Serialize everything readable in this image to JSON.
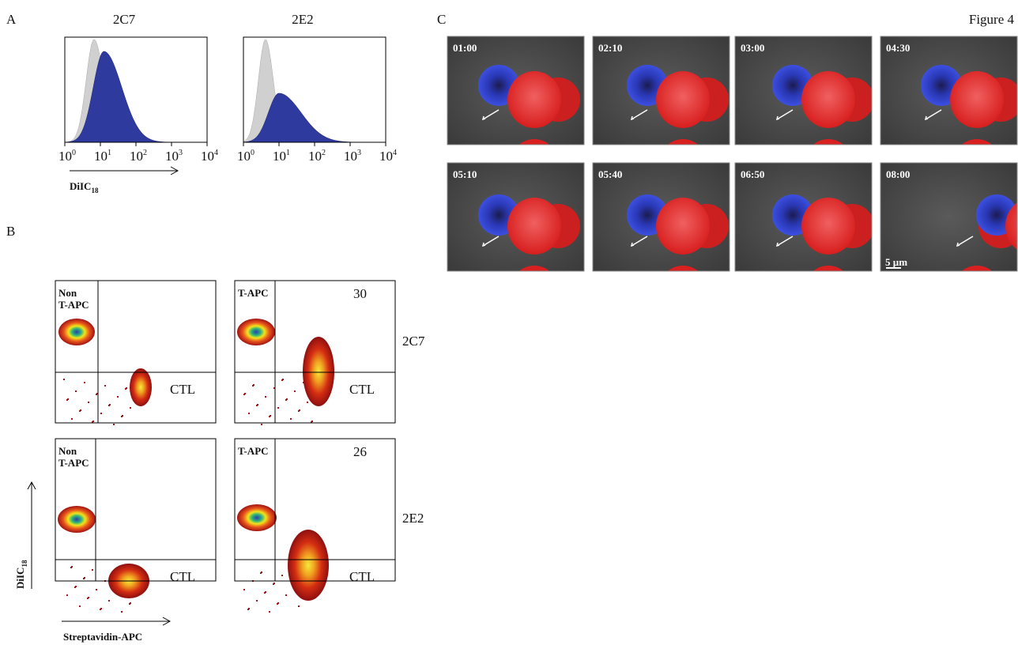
{
  "figure_label": "Figure 4",
  "panel_a": {
    "label": "A",
    "histograms": [
      {
        "title": "2C7"
      },
      {
        "title": "2E2"
      }
    ],
    "ticks": [
      {
        "base": "10",
        "exponent": "0"
      },
      {
        "base": "10",
        "exponent": "1"
      },
      {
        "base": "10",
        "exponent": "2"
      },
      {
        "base": "10",
        "exponent": "3"
      },
      {
        "base": "10",
        "exponent": "4"
      }
    ],
    "axis_label": {
      "text": "DiIC",
      "subscript": "18"
    }
  },
  "panel_b": {
    "label": "B",
    "plots": [
      {
        "quadrant_label": [
          "Non",
          "T-APC"
        ],
        "gate_label": "CTL"
      },
      {
        "quadrant_label": [
          "T-APC"
        ],
        "percent": 30,
        "gate_label": "CTL"
      },
      {
        "quadrant_label": [
          "Non",
          "T-APC"
        ],
        "gate_label": "CTL"
      },
      {
        "quadrant_label": [
          "T-APC"
        ],
        "percent": 26,
        "gate_label": "CTL"
      }
    ],
    "row_labels": [
      "2C7",
      "2E2"
    ],
    "y_axis_label": {
      "text": "DiIC",
      "subscript": "18"
    },
    "x_axis_label": "Streptavidin-APC"
  },
  "panel_c": {
    "label": "C",
    "frames": [
      "01:00",
      "02:10",
      "03:00",
      "04:30",
      "05:10",
      "05:40",
      "06:50",
      "08:00"
    ],
    "scale_bar": "5 µm"
  }
}
